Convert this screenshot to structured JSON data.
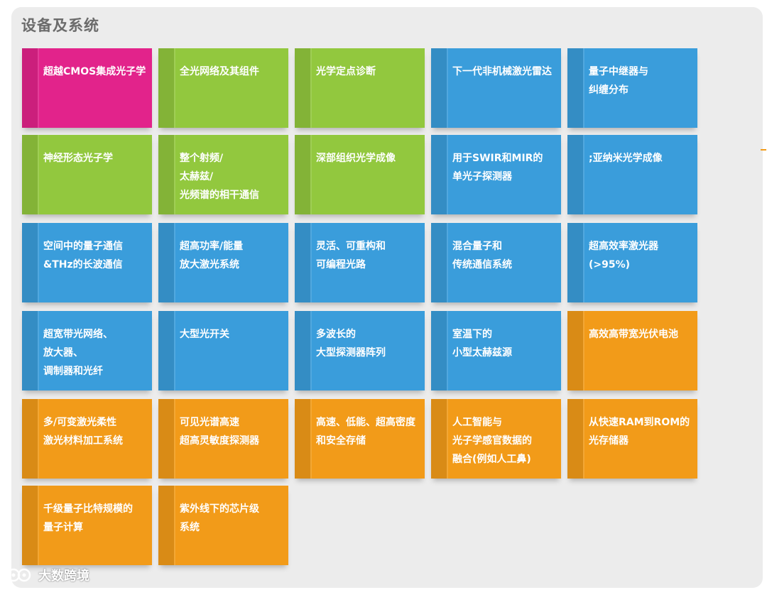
{
  "header": {
    "title": "设备及系统"
  },
  "colors": {
    "pink": "#e2238b",
    "green": "#92c83e",
    "blue": "#3a9ddb",
    "orange": "#f29b19"
  },
  "tiles": [
    {
      "label": "超越CMOS集成光子学",
      "color": "pink"
    },
    {
      "label": "全光网络及其组件",
      "color": "green"
    },
    {
      "label": "光学定点诊断",
      "color": "green"
    },
    {
      "label": "下一代非机械激光雷达",
      "color": "blue"
    },
    {
      "label": "量子中继器与\n纠缠分布",
      "color": "blue"
    },
    {
      "label": "神经形态光子学",
      "color": "green"
    },
    {
      "label": "整个射频/\n太赫兹/\n光频谱的相干通信",
      "color": "green"
    },
    {
      "label": "深部组织光学成像",
      "color": "green"
    },
    {
      "label": "用于SWIR和MIR的\n单光子探测器",
      "color": "blue"
    },
    {
      "label": ";亚纳米光学成像",
      "color": "blue"
    },
    {
      "label": "空间中的量子通信\n&THz的长波通信",
      "color": "blue"
    },
    {
      "label": "超高功率/能量\n放大激光系统",
      "color": "blue"
    },
    {
      "label": "灵活、可重构和\n可编程光路",
      "color": "blue"
    },
    {
      "label": "混合量子和\n传统通信系统",
      "color": "blue"
    },
    {
      "label": "超高效率激光器\n(>95%)",
      "color": "blue"
    },
    {
      "label": "超宽带光网络、\n放大器、\n调制器和光纤",
      "color": "blue"
    },
    {
      "label": "大型光开关",
      "color": "blue"
    },
    {
      "label": "多波长的\n大型探测器阵列",
      "color": "blue"
    },
    {
      "label": "室温下的\n小型太赫兹源",
      "color": "blue"
    },
    {
      "label": "高效高带宽光伏电池",
      "color": "orange"
    },
    {
      "label": "多/可变激光柔性\n激光材料加工系统",
      "color": "orange"
    },
    {
      "label": "可见光谱高速\n超高灵敏度探测器",
      "color": "orange"
    },
    {
      "label": "高速、低能、超高密度\n和安全存储",
      "color": "orange"
    },
    {
      "label": "人工智能与\n光子学感官数据的\n融合(例如人工鼻)",
      "color": "orange"
    },
    {
      "label": "从快速RAM到ROM的\n光存储器",
      "color": "orange"
    },
    {
      "label": "千级量子比特规模的\n量子计算",
      "color": "orange"
    },
    {
      "label": "紫外线下的芯片级\n系统",
      "color": "orange"
    }
  ],
  "watermark": {
    "text": "大数跨境"
  }
}
